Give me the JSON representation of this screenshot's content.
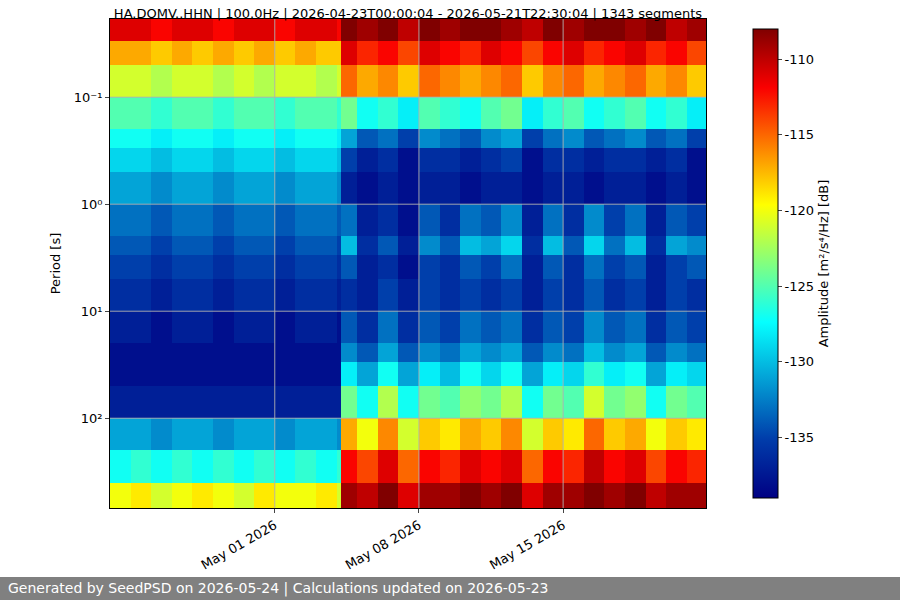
{
  "chart_data": {
    "type": "heatmap",
    "title": "HA.DOMV..HHN | 100.0Hz | 2026-04-23T00:00:04 - 2026-05-21T22:30:04 | 1343 segments",
    "y_label": "Period [s]",
    "colorbar_label": "Amplitude [m²/s⁴/Hz] [dB]",
    "footer": "Generated by SeedPSD on 2026-05-24 | Calculations updated on 2026-05-23",
    "color": "Jet",
    "log": "y",
    "grid": true,
    "xlim": [
      "2026-04-23T00:00:04",
      "2026-05-21T22:30:04"
    ],
    "xticks": [
      {
        "value": "2026-05-01",
        "label": "May 01 2026"
      },
      {
        "value": "2026-05-08",
        "label": "May 08 2026"
      },
      {
        "value": "2026-05-15",
        "label": "May 15 2026"
      }
    ],
    "ylim": [
      0.0186,
      690
    ],
    "yticks": [
      {
        "value": 0.1,
        "label": "10⁻¹"
      },
      {
        "value": 1,
        "label": "10⁰"
      },
      {
        "value": 10,
        "label": "10¹"
      },
      {
        "value": 100,
        "label": "10²"
      }
    ],
    "zlim": [
      -139,
      -108
    ],
    "zticks": [
      -135,
      -130,
      -125,
      -120,
      -115,
      -110
    ],
    "time_edges": [
      "2026-04-23T00:00:04",
      "2026-04-24",
      "2026-04-25",
      "2026-04-26",
      "2026-04-27",
      "2026-04-28",
      "2026-04-29",
      "2026-04-30",
      "2026-05-01",
      "2026-05-02",
      "2026-05-03",
      "2026-05-04",
      "2026-05-04T05:00",
      "2026-05-05",
      "2026-05-06",
      "2026-05-07",
      "2026-05-08",
      "2026-05-09",
      "2026-05-10",
      "2026-05-11",
      "2026-05-12",
      "2026-05-13",
      "2026-05-14",
      "2026-05-15",
      "2026-05-16",
      "2026-05-17",
      "2026-05-18",
      "2026-05-19",
      "2026-05-20",
      "2026-05-21",
      "2026-05-21T22:30:04"
    ],
    "period_edges": [
      0.0186,
      0.03,
      0.05,
      0.1,
      0.2,
      0.3,
      0.5,
      1,
      2,
      3,
      5,
      10,
      20,
      30,
      50,
      100,
      200,
      400,
      690
    ],
    "z": [
      [
        -111,
        -111,
        -112,
        -111,
        -111,
        -112,
        -111,
        -111,
        -112,
        -111,
        -111,
        -112,
        -108,
        -109,
        -108,
        -110,
        -108,
        -109,
        -108,
        -108,
        -109,
        -110,
        -108,
        -109,
        -108,
        -108,
        -109,
        -108,
        -110,
        -109
      ],
      [
        -117,
        -117,
        -118,
        -117,
        -118,
        -117,
        -118,
        -117,
        -118,
        -117,
        -118,
        -118,
        -111,
        -113,
        -112,
        -114,
        -111,
        -112,
        -113,
        -111,
        -112,
        -114,
        -112,
        -111,
        -113,
        -112,
        -111,
        -113,
        -112,
        -114
      ],
      [
        -121,
        -121,
        -122,
        -121,
        -121,
        -122,
        -121,
        -122,
        -121,
        -121,
        -122,
        -121,
        -115,
        -117,
        -116,
        -118,
        -115,
        -116,
        -117,
        -116,
        -115,
        -118,
        -116,
        -115,
        -117,
        -116,
        -115,
        -117,
        -116,
        -118
      ],
      [
        -125,
        -125,
        -126,
        -125,
        -125,
        -126,
        -125,
        -125,
        -126,
        -125,
        -125,
        -126,
        -124,
        -127,
        -126,
        -128,
        -125,
        -126,
        -127,
        -125,
        -124,
        -128,
        -126,
        -125,
        -127,
        -126,
        -125,
        -127,
        -126,
        -128
      ],
      [
        -127,
        -127,
        -128,
        -127,
        -127,
        -128,
        -127,
        -127,
        -128,
        -127,
        -127,
        -128,
        -131,
        -134,
        -133,
        -135,
        -132,
        -133,
        -134,
        -132,
        -131,
        -135,
        -133,
        -132,
        -134,
        -133,
        -132,
        -134,
        -133,
        -135
      ],
      [
        -129,
        -129,
        -130,
        -129,
        -129,
        -130,
        -129,
        -129,
        -130,
        -129,
        -129,
        -130,
        -135,
        -137,
        -136,
        -138,
        -136,
        -136,
        -137,
        -136,
        -135,
        -138,
        -136,
        -136,
        -137,
        -136,
        -136,
        -137,
        -136,
        -138
      ],
      [
        -131,
        -131,
        -132,
        -131,
        -131,
        -132,
        -131,
        -131,
        -132,
        -131,
        -131,
        -132,
        -137,
        -138,
        -137,
        -138,
        -137,
        -137,
        -138,
        -137,
        -137,
        -138,
        -137,
        -137,
        -138,
        -137,
        -137,
        -138,
        -137,
        -138
      ],
      [
        -133,
        -133,
        -134,
        -133,
        -133,
        -134,
        -133,
        -133,
        -134,
        -133,
        -133,
        -134,
        -133,
        -137,
        -136,
        -138,
        -134,
        -136,
        -133,
        -134,
        -132,
        -137,
        -133,
        -136,
        -132,
        -135,
        -133,
        -137,
        -134,
        -135
      ],
      [
        -134,
        -134,
        -135,
        -134,
        -134,
        -135,
        -134,
        -134,
        -135,
        -134,
        -134,
        -135,
        -130,
        -136,
        -134,
        -137,
        -132,
        -134,
        -130,
        -131,
        -129,
        -136,
        -130,
        -134,
        -129,
        -133,
        -130,
        -136,
        -131,
        -132
      ],
      [
        -135,
        -135,
        -136,
        -135,
        -135,
        -136,
        -135,
        -135,
        -136,
        -135,
        -135,
        -136,
        -134,
        -137,
        -136,
        -138,
        -135,
        -136,
        -134,
        -135,
        -133,
        -137,
        -134,
        -136,
        -133,
        -135,
        -134,
        -137,
        -135,
        -134
      ],
      [
        -136,
        -136,
        -137,
        -136,
        -136,
        -137,
        -136,
        -136,
        -137,
        -136,
        -136,
        -137,
        -136,
        -137,
        -135,
        -137,
        -135,
        -136,
        -135,
        -136,
        -135,
        -137,
        -135,
        -136,
        -134,
        -136,
        -135,
        -137,
        -135,
        -136
      ],
      [
        -137,
        -137,
        -138,
        -137,
        -137,
        -138,
        -137,
        -137,
        -138,
        -137,
        -137,
        -138,
        -134,
        -136,
        -133,
        -136,
        -134,
        -135,
        -133,
        -134,
        -133,
        -136,
        -134,
        -135,
        -132,
        -134,
        -133,
        -136,
        -134,
        -135
      ],
      [
        -138,
        -138,
        -138,
        -138,
        -138,
        -138,
        -138,
        -138,
        -138,
        -138,
        -138,
        -138,
        -132,
        -134,
        -131,
        -134,
        -132,
        -133,
        -131,
        -132,
        -131,
        -134,
        -132,
        -133,
        -130,
        -132,
        -131,
        -134,
        -132,
        -133
      ],
      [
        -138,
        -138,
        -138,
        -138,
        -138,
        -138,
        -138,
        -138,
        -138,
        -138,
        -138,
        -138,
        -128,
        -131,
        -127,
        -131,
        -128,
        -130,
        -127,
        -129,
        -127,
        -131,
        -128,
        -129,
        -126,
        -128,
        -127,
        -131,
        -128,
        -129
      ],
      [
        -137,
        -137,
        -137,
        -137,
        -137,
        -137,
        -137,
        -137,
        -137,
        -137,
        -137,
        -137,
        -124,
        -127,
        -122,
        -127,
        -124,
        -125,
        -123,
        -124,
        -122,
        -127,
        -124,
        -125,
        -121,
        -124,
        -123,
        -127,
        -124,
        -125
      ],
      [
        -131,
        -131,
        -132,
        -131,
        -131,
        -132,
        -131,
        -131,
        -132,
        -131,
        -131,
        -132,
        -117,
        -120,
        -116,
        -121,
        -118,
        -119,
        -117,
        -118,
        -116,
        -121,
        -118,
        -119,
        -115,
        -118,
        -117,
        -120,
        -118,
        -119
      ],
      [
        -127,
        -126,
        -127,
        -126,
        -127,
        -126,
        -127,
        -126,
        -127,
        -126,
        -127,
        -126,
        -112,
        -114,
        -111,
        -115,
        -112,
        -113,
        -111,
        -112,
        -111,
        -115,
        -112,
        -113,
        -110,
        -112,
        -111,
        -114,
        -112,
        -113
      ],
      [
        -120,
        -119,
        -121,
        -120,
        -119,
        -120,
        -121,
        -119,
        -120,
        -120,
        -119,
        -121,
        -109,
        -110,
        -108,
        -111,
        -109,
        -109,
        -108,
        -109,
        -108,
        -111,
        -109,
        -109,
        -108,
        -109,
        -108,
        -110,
        -109,
        -109
      ]
    ]
  }
}
